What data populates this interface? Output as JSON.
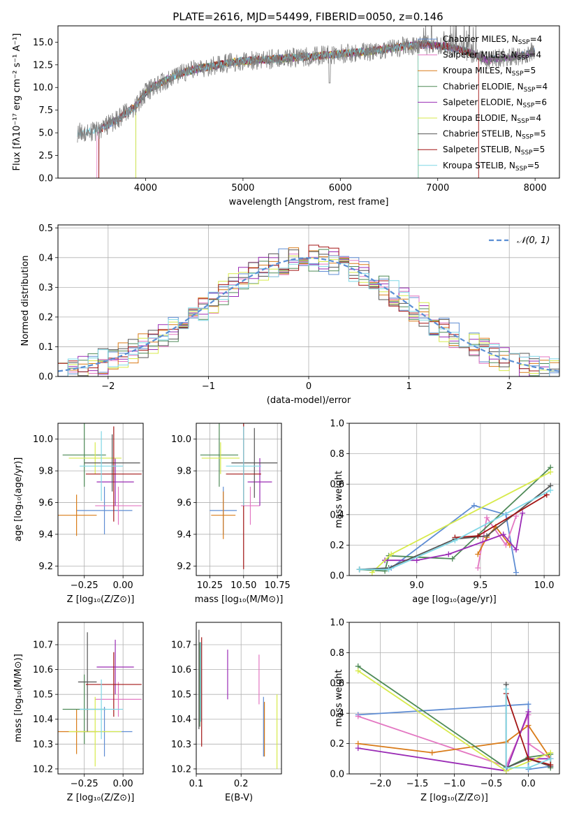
{
  "figure_title": "PLATE=2616, MJD=54499, FIBERID=0050, z=0.146",
  "legend_order": [
    "Chabrier MILES",
    "Salpeter MILES",
    "Kroupa MILES",
    "Chabrier ELODIE",
    "Salpeter ELODIE",
    "Kroupa ELODIE",
    "Chabrier STELIB",
    "Salpeter STELIB",
    "Kroupa STELIB"
  ],
  "chart_data": [
    {
      "id": "spectrum",
      "type": "line",
      "xlabel": "wavelength [Angstrom, rest frame]",
      "ylabel": "Flux [fλ10⁻¹⁷ erg cm⁻² s⁻¹ A⁻¹]",
      "xlim": [
        3100,
        8250
      ],
      "ylim": [
        0,
        16.8
      ],
      "xticks": [
        "4000",
        "5000",
        "6000",
        "7000",
        "8000"
      ],
      "yticks": [
        "0.0",
        "2.5",
        "5.0",
        "7.5",
        "10.0",
        "12.5",
        "15.0"
      ],
      "grid": false,
      "legend_loc": "upper right",
      "legend": [
        {
          "label": "Chabrier MILES, N",
          "sub": "SSP",
          "suffix": "=4",
          "color": "#5f8dd3"
        },
        {
          "label": "Salpeter MILES, N",
          "sub": "SSP",
          "suffix": "=4",
          "color": "#e377c2"
        },
        {
          "label": "Kroupa MILES, N",
          "sub": "SSP",
          "suffix": "=5",
          "color": "#d97b18"
        },
        {
          "label": "Chabrier ELODIE, N",
          "sub": "SSP",
          "suffix": "=4",
          "color": "#4e8a57"
        },
        {
          "label": "Salpeter ELODIE, N",
          "sub": "SSP",
          "suffix": "=6",
          "color": "#9a2bb5"
        },
        {
          "label": "Kroupa ELODIE, N",
          "sub": "SSP",
          "suffix": "=4",
          "color": "#d7ea4b"
        },
        {
          "label": "Chabrier STELIB, N",
          "sub": "SSP",
          "suffix": "=5",
          "color": "#555555"
        },
        {
          "label": "Salpeter STELIB, N",
          "sub": "SSP",
          "suffix": "=5",
          "color": "#a31515"
        },
        {
          "label": "Kroupa STELIB, N",
          "sub": "SSP",
          "suffix": "=5",
          "color": "#7fd7e6"
        }
      ],
      "data_color": "#7f7f7f",
      "continuum_x": [
        3300,
        3500,
        3700,
        3900,
        4000,
        4100,
        4300,
        4500,
        4700,
        4900,
        5100,
        5300,
        5500,
        5700,
        5900,
        6100,
        6300,
        6500,
        6700,
        6900,
        7100,
        7300,
        7500,
        7700,
        7900,
        8000
      ],
      "continuum_y": [
        5.0,
        5.2,
        6.4,
        8.0,
        9.4,
        10.2,
        11.3,
        12.0,
        12.4,
        12.8,
        13.0,
        13.1,
        13.3,
        13.4,
        13.6,
        13.8,
        14.0,
        14.3,
        14.6,
        14.7,
        14.5,
        14.0,
        13.0,
        13.3,
        13.6,
        14.0
      ]
    },
    {
      "id": "residuals",
      "type": "histogram",
      "xlabel": "(data-model)/error",
      "ylabel": "Normed distribution",
      "xlim": [
        -2.5,
        2.5
      ],
      "ylim": [
        0,
        0.51
      ],
      "xticks": [
        "−2",
        "−1",
        "0",
        "1",
        "2"
      ],
      "yticks": [
        "0.0",
        "0.1",
        "0.2",
        "0.3",
        "0.4",
        "0.5"
      ],
      "grid": true,
      "legend": [
        {
          "label": "𝒩(0, 1)",
          "color": "#5b8fd4"
        }
      ],
      "bin_width": 0.1
    },
    {
      "id": "age_vs_Z",
      "type": "errorbar",
      "xlabel": "Z [log₁₀(Z/Z⊙)]",
      "ylabel": "age  [log₁₀(age/yr)]",
      "xlim": [
        -0.42,
        0.13
      ],
      "ylim": [
        9.14,
        10.1
      ],
      "xticks": [
        "−0.25",
        "0.00"
      ],
      "yticks": [
        "9.2",
        "9.4",
        "9.6",
        "9.8",
        "10.0"
      ],
      "points": [
        {
          "x": -0.12,
          "xerr": 0.18,
          "y": 9.55,
          "yerr": 0.15,
          "c": "#5f8dd3"
        },
        {
          "x": -0.03,
          "xerr": 0.15,
          "y": 9.58,
          "yerr": 0.12,
          "c": "#e377c2"
        },
        {
          "x": -0.3,
          "xerr": 0.13,
          "y": 9.52,
          "yerr": 0.13,
          "c": "#d97b18"
        },
        {
          "x": -0.25,
          "xerr": 0.14,
          "y": 9.9,
          "yerr": 0.2,
          "c": "#4e8a57"
        },
        {
          "x": -0.05,
          "xerr": 0.12,
          "y": 9.73,
          "yerr": 0.15,
          "c": "#9a2bb5"
        },
        {
          "x": -0.18,
          "xerr": 0.17,
          "y": 9.88,
          "yerr": 0.1,
          "c": "#d7ea4b"
        },
        {
          "x": -0.07,
          "xerr": 0.18,
          "y": 9.85,
          "yerr": 0.18,
          "c": "#555555"
        },
        {
          "x": -0.06,
          "xerr": 0.18,
          "y": 9.78,
          "yerr": 0.3,
          "c": "#a31515"
        },
        {
          "x": -0.14,
          "xerr": 0.14,
          "y": 9.83,
          "yerr": 0.22,
          "c": "#7fd7e6"
        }
      ]
    },
    {
      "id": "age_vs_mass",
      "type": "errorbar",
      "xlabel": "mass [log₁₀(M/M⊙)]",
      "ylabel": "",
      "xlim": [
        10.15,
        10.78
      ],
      "ylim": [
        9.14,
        10.1
      ],
      "xticks": [
        "10.25",
        "10.50",
        "10.75"
      ],
      "yticks": [
        "9.2",
        "9.4",
        "9.6",
        "9.8",
        "10.0"
      ],
      "points": [
        {
          "x": 10.35,
          "xerr": 0.1,
          "y": 9.55,
          "yerr": 0.15,
          "c": "#5f8dd3"
        },
        {
          "x": 10.55,
          "xerr": 0.07,
          "y": 9.58,
          "yerr": 0.12,
          "c": "#e377c2"
        },
        {
          "x": 10.35,
          "xerr": 0.09,
          "y": 9.52,
          "yerr": 0.15,
          "c": "#d97b18"
        },
        {
          "x": 10.32,
          "xerr": 0.14,
          "y": 9.9,
          "yerr": 0.2,
          "c": "#4e8a57"
        },
        {
          "x": 10.62,
          "xerr": 0.09,
          "y": 9.73,
          "yerr": 0.15,
          "c": "#9a2bb5"
        },
        {
          "x": 10.33,
          "xerr": 0.14,
          "y": 9.88,
          "yerr": 0.1,
          "c": "#d7ea4b"
        },
        {
          "x": 10.58,
          "xerr": 0.17,
          "y": 9.85,
          "yerr": 0.22,
          "c": "#555555"
        },
        {
          "x": 10.5,
          "xerr": 0.13,
          "y": 9.78,
          "yerr": 0.6,
          "c": "#a31515"
        },
        {
          "x": 10.5,
          "xerr": 0.13,
          "y": 9.83,
          "yerr": 0.25,
          "c": "#7fd7e6"
        }
      ]
    },
    {
      "id": "weight_vs_age",
      "type": "line",
      "xlabel": "age  [log₁₀(age/yr)]",
      "ylabel": "mass weight",
      "xlim": [
        8.47,
        10.12
      ],
      "ylim": [
        0,
        1
      ],
      "xticks": [
        "9.0",
        "9.5",
        "10.0"
      ],
      "yticks": [
        "0.0",
        "0.2",
        "0.4",
        "0.6",
        "0.8",
        "1.0"
      ],
      "grid": true,
      "series": [
        {
          "c": "#5f8dd3",
          "x": [
            8.55,
            8.8,
            9.45,
            9.7,
            9.78
          ],
          "y": [
            0.04,
            0.05,
            0.46,
            0.4,
            0.02
          ]
        },
        {
          "c": "#e377c2",
          "x": [
            9.48,
            9.55,
            9.7,
            9.78
          ],
          "y": [
            0.05,
            0.38,
            0.2,
            0.39
          ]
        },
        {
          "c": "#d97b18",
          "x": [
            9.48,
            9.55,
            9.62,
            9.73
          ],
          "y": [
            0.14,
            0.25,
            0.32,
            0.2
          ]
        },
        {
          "c": "#4e8a57",
          "x": [
            8.55,
            8.75,
            8.78,
            9.28,
            10.05
          ],
          "y": [
            0.04,
            0.03,
            0.13,
            0.11,
            0.71
          ]
        },
        {
          "c": "#9a2bb5",
          "x": [
            8.75,
            9.0,
            9.25,
            9.68,
            9.78,
            9.83
          ],
          "y": [
            0.1,
            0.1,
            0.14,
            0.27,
            0.17,
            0.41
          ]
        },
        {
          "c": "#d7ea4b",
          "x": [
            8.65,
            8.8,
            10.05
          ],
          "y": [
            0.02,
            0.14,
            0.68
          ]
        },
        {
          "c": "#555555",
          "x": [
            8.55,
            8.78,
            9.3,
            9.55,
            10.05
          ],
          "y": [
            0.04,
            0.05,
            0.24,
            0.26,
            0.59
          ]
        },
        {
          "c": "#a31515",
          "x": [
            9.3,
            9.48,
            10.02
          ],
          "y": [
            0.25,
            0.26,
            0.53
          ]
        },
        {
          "c": "#7fd7e6",
          "x": [
            8.55,
            8.78,
            9.3,
            10.05
          ],
          "y": [
            0.04,
            0.04,
            0.23,
            0.56
          ]
        }
      ]
    },
    {
      "id": "mass_vs_Z",
      "type": "errorbar",
      "xlabel": "Z [log₁₀(Z/Z⊙)]",
      "ylabel": "mass [log₁₀(M/M⊙)]",
      "xlim": [
        -0.42,
        0.13
      ],
      "ylim": [
        10.18,
        10.79
      ],
      "xticks": [
        "−0.25",
        "0.00"
      ],
      "yticks": [
        "10.2",
        "10.3",
        "10.4",
        "10.5",
        "10.6",
        "10.7"
      ],
      "points": [
        {
          "x": -0.12,
          "xerr": 0.18,
          "y": 10.35,
          "yerr": 0.1,
          "c": "#5f8dd3"
        },
        {
          "x": -0.03,
          "xerr": 0.15,
          "y": 10.48,
          "yerr": 0.07,
          "c": "#e377c2"
        },
        {
          "x": -0.3,
          "xerr": 0.13,
          "y": 10.35,
          "yerr": 0.09,
          "c": "#d97b18"
        },
        {
          "x": -0.25,
          "xerr": 0.14,
          "y": 10.44,
          "yerr": 0.14,
          "c": "#4e8a57"
        },
        {
          "x": -0.05,
          "xerr": 0.12,
          "y": 10.61,
          "yerr": 0.11,
          "c": "#9a2bb5"
        },
        {
          "x": -0.18,
          "xerr": 0.17,
          "y": 10.35,
          "yerr": 0.14,
          "c": "#d7ea4b"
        },
        {
          "x": -0.23,
          "xerr": 0.06,
          "y": 10.55,
          "yerr": 0.2,
          "c": "#555555"
        },
        {
          "x": -0.06,
          "xerr": 0.18,
          "y": 10.54,
          "yerr": 0.13,
          "c": "#a31515"
        },
        {
          "x": -0.14,
          "xerr": 0.14,
          "y": 10.44,
          "yerr": 0.12,
          "c": "#7fd7e6"
        }
      ]
    },
    {
      "id": "mass_vs_ebv",
      "type": "errorbar",
      "xlabel": "E(B-V)",
      "ylabel": "",
      "xlim": [
        0.1,
        0.29
      ],
      "ylim": [
        10.18,
        10.79
      ],
      "xticks": [
        "0.1",
        "0.2"
      ],
      "yticks": [
        "10.2",
        "10.3",
        "10.4",
        "10.5",
        "10.6",
        "10.7"
      ],
      "points": [
        {
          "x": 0.25,
          "y": 10.37,
          "yerr": 0.12,
          "c": "#5f8dd3"
        },
        {
          "x": 0.24,
          "y": 10.56,
          "yerr": 0.1,
          "c": "#e377c2"
        },
        {
          "x": 0.252,
          "y": 10.36,
          "yerr": 0.11,
          "c": "#d97b18"
        },
        {
          "x": 0.108,
          "y": 10.54,
          "yerr": 0.17,
          "c": "#4e8a57"
        },
        {
          "x": 0.17,
          "y": 10.58,
          "yerr": 0.1,
          "c": "#9a2bb5"
        },
        {
          "x": 0.28,
          "y": 10.35,
          "yerr": 0.15,
          "c": "#d7ea4b"
        },
        {
          "x": 0.106,
          "y": 10.56,
          "yerr": 0.2,
          "c": "#555555"
        },
        {
          "x": 0.112,
          "y": 10.51,
          "yerr": 0.22,
          "c": "#a31515"
        },
        {
          "x": 0.11,
          "y": 10.55,
          "yerr": 0.16,
          "c": "#7fd7e6"
        }
      ]
    },
    {
      "id": "weight_vs_Z",
      "type": "line",
      "xlabel": "Z [log₁₀(Z/Z⊙)]",
      "ylabel": "mass weight",
      "xlim": [
        -2.42,
        0.42
      ],
      "ylim": [
        0,
        1
      ],
      "xticks": [
        "−2.0",
        "−1.5",
        "−1.0",
        "−0.5",
        "0.0"
      ],
      "yticks": [
        "0.0",
        "0.2",
        "0.4",
        "0.6",
        "0.8",
        "1.0"
      ],
      "grid": true,
      "series": [
        {
          "c": "#5f8dd3",
          "x": [
            -2.3,
            0.0,
            0.0,
            0.3
          ],
          "y": [
            0.39,
            0.46,
            0.03,
            0.05
          ]
        },
        {
          "c": "#e377c2",
          "x": [
            -2.3,
            -0.3,
            0.0,
            0.0,
            0.3
          ],
          "y": [
            0.38,
            0.05,
            0.39,
            0.2,
            0.1
          ]
        },
        {
          "c": "#d97b18",
          "x": [
            -2.3,
            -1.3,
            -0.3,
            0.0,
            0.3
          ],
          "y": [
            0.2,
            0.14,
            0.21,
            0.32,
            0.1
          ]
        },
        {
          "c": "#4e8a57",
          "x": [
            -2.3,
            -0.3,
            0.0,
            0.3,
            0.3
          ],
          "y": [
            0.71,
            0.04,
            0.11,
            0.13,
            0.04
          ]
        },
        {
          "c": "#9a2bb5",
          "x": [
            -2.3,
            -0.3,
            0.0,
            0.0,
            0.3
          ],
          "y": [
            0.17,
            0.02,
            0.41,
            0.1,
            0.1
          ]
        },
        {
          "c": "#d7ea4b",
          "x": [
            -2.3,
            -0.3,
            0.3
          ],
          "y": [
            0.68,
            0.02,
            0.14
          ]
        },
        {
          "c": "#555555",
          "x": [
            -0.3,
            -0.3,
            0.0,
            0.3
          ],
          "y": [
            0.59,
            0.04,
            0.1,
            0.05
          ]
        },
        {
          "c": "#a31515",
          "x": [
            -0.3,
            0.0,
            0.3
          ],
          "y": [
            0.53,
            0.1,
            0.06
          ]
        },
        {
          "c": "#7fd7e6",
          "x": [
            -0.3,
            -0.3,
            0.0,
            0.3
          ],
          "y": [
            0.56,
            0.04,
            0.04,
            0.1
          ]
        }
      ]
    }
  ]
}
